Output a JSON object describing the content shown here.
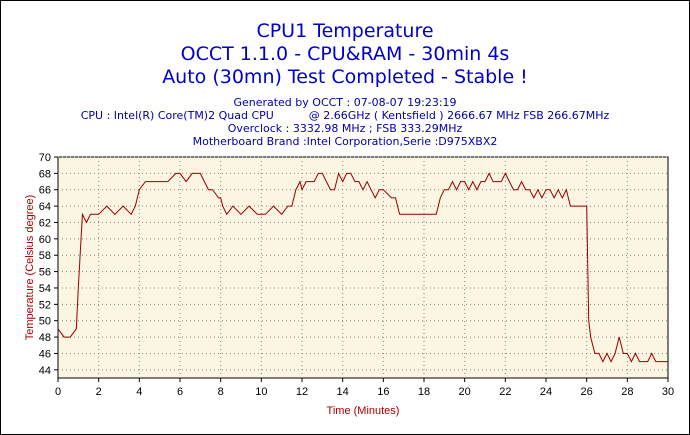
{
  "title_lines": [
    "CPU1 Temperature",
    "OCCT 1.1.0 - CPU&RAM - 30min 4s",
    "Auto (30mn) Test Completed - Stable !"
  ],
  "info_lines": [
    "Generated by OCCT : 07-08-07 19:23:19",
    "CPU : Intel(R) Core(TM)2 Quad CPU          @ 2.66GHz ( Kentsfield ) 2666.67 MHz FSB 266.67MHz",
    "Overclock : 3332.98 MHz ; FSB 333.29MHz",
    "Motherboard Brand :Intel Corporation,Serie :D975XBX2"
  ],
  "colors": {
    "title": "#0000cc",
    "info": "#0000aa",
    "line": "#990000",
    "plot_bg": "#fbf5e1",
    "grid": "#888888",
    "axis_label": "#aa0000"
  },
  "chart_data": {
    "type": "line",
    "xlabel": "Time (Minutes)",
    "ylabel": "Temperature (Celsius degree)",
    "xlim": [
      0,
      30
    ],
    "ylim": [
      43,
      70
    ],
    "x_ticks": [
      0,
      2,
      4,
      6,
      8,
      10,
      12,
      14,
      16,
      18,
      20,
      22,
      24,
      26,
      28,
      30
    ],
    "y_ticks": [
      44,
      46,
      48,
      50,
      52,
      54,
      56,
      58,
      60,
      62,
      64,
      66,
      68,
      70
    ],
    "grid": true,
    "legend": "none",
    "series": [
      {
        "x": [
          0,
          0.3,
          0.6,
          0.9,
          1.0,
          1.2,
          1.4,
          1.6,
          1.8,
          2.0,
          2.4,
          2.8,
          3.2,
          3.6,
          3.8,
          4.0,
          4.3,
          4.6,
          5.0,
          5.4,
          5.8,
          6.0,
          6.3,
          6.6,
          7.0,
          7.2,
          7.4,
          7.6,
          7.9,
          8.0,
          8.1,
          8.3,
          8.6,
          9.0,
          9.4,
          9.8,
          10.2,
          10.6,
          11.0,
          11.3,
          11.5,
          11.7,
          11.9,
          12.0,
          12.2,
          12.4,
          12.6,
          12.8,
          13.0,
          13.2,
          13.4,
          13.6,
          13.8,
          14.0,
          14.2,
          14.4,
          14.6,
          14.8,
          15.0,
          15.2,
          15.4,
          15.6,
          15.8,
          16.0,
          16.4,
          16.6,
          16.8,
          17.0,
          17.4,
          17.8,
          18.2,
          18.6,
          18.8,
          19.0,
          19.2,
          19.4,
          19.6,
          19.8,
          20.0,
          20.2,
          20.4,
          20.6,
          20.8,
          21.0,
          21.2,
          21.4,
          21.6,
          21.8,
          22.0,
          22.2,
          22.4,
          22.6,
          22.8,
          23.0,
          23.2,
          23.4,
          23.6,
          23.8,
          24.0,
          24.2,
          24.4,
          24.6,
          24.8,
          25.0,
          25.2,
          25.4,
          25.6,
          25.8,
          26.0,
          26.1,
          26.2,
          26.4,
          26.6,
          26.8,
          27.0,
          27.2,
          27.4,
          27.6,
          27.8,
          28.0,
          28.2,
          28.4,
          28.6,
          28.8,
          29.0,
          29.2,
          29.4,
          29.6,
          29.8,
          30.0
        ],
        "values": [
          49,
          48,
          48,
          49,
          54,
          63,
          62,
          63,
          63,
          63,
          64,
          63,
          64,
          63,
          64,
          66,
          67,
          67,
          67,
          67,
          68,
          68,
          67,
          68,
          68,
          67,
          66,
          66,
          65,
          65,
          64,
          63,
          64,
          63,
          64,
          63,
          63,
          64,
          63,
          64,
          64,
          66,
          67,
          66,
          67,
          67,
          67,
          68,
          68,
          67,
          66,
          66,
          68,
          67,
          68,
          68,
          67,
          67,
          66,
          67,
          66,
          65,
          66,
          66,
          65,
          65,
          63,
          63,
          63,
          63,
          63,
          63,
          65,
          66,
          66,
          67,
          66,
          67,
          67,
          66,
          67,
          66,
          67,
          67,
          68,
          67,
          67,
          67,
          68,
          67,
          66,
          66,
          67,
          66,
          66,
          65,
          66,
          65,
          66,
          66,
          65,
          66,
          65,
          66,
          64,
          64,
          64,
          64,
          64,
          50,
          48,
          46,
          46,
          45,
          46,
          45,
          46,
          48,
          46,
          46,
          45,
          46,
          45,
          45,
          45,
          46,
          45,
          45,
          45,
          45
        ]
      }
    ]
  }
}
